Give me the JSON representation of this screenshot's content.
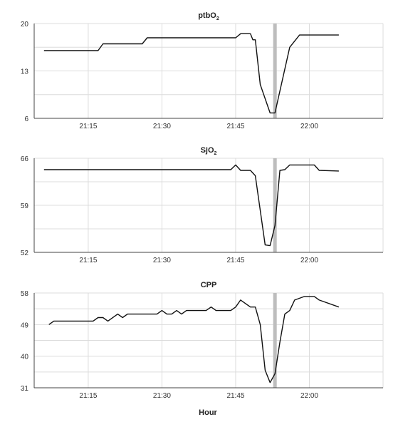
{
  "chart_data": [
    {
      "type": "line",
      "title": "ptbO",
      "title_sub": "2",
      "xlabel": "",
      "ylabel": "",
      "ylim": [
        6,
        20
      ],
      "yticks": [
        "6",
        "13",
        "20"
      ],
      "ytick_values": [
        6,
        13,
        20
      ],
      "xticks": [
        "21:15",
        "21:30",
        "21:45",
        "22:00"
      ],
      "xtick_values": [
        "21:15",
        "21:30",
        "21:45",
        "22:00"
      ],
      "xlim": [
        "21:04",
        "22:15"
      ],
      "grid": true,
      "marker_time": "21:53",
      "series": [
        {
          "x": [
            "21:06",
            "21:17",
            "21:18",
            "21:26",
            "21:27",
            "21:45",
            "21:46",
            "21:48",
            "21:48.5",
            "21:49",
            "21:50",
            "21:52",
            "21:53",
            "21:56",
            "21:58",
            "22:06"
          ],
          "values": [
            16,
            16,
            17,
            17,
            17.9,
            17.9,
            18.5,
            18.5,
            17.6,
            17.6,
            11,
            6.8,
            6.8,
            16.5,
            18.3,
            18.3
          ]
        }
      ]
    },
    {
      "type": "line",
      "title": "SjO",
      "title_sub": "2",
      "xlabel": "",
      "ylabel": "",
      "ylim": [
        52,
        66
      ],
      "yticks": [
        "52",
        "59",
        "66"
      ],
      "ytick_values": [
        52,
        59,
        66
      ],
      "xticks": [
        "21:15",
        "21:30",
        "21:45",
        "22:00"
      ],
      "xtick_values": [
        "21:15",
        "21:30",
        "21:45",
        "22:00"
      ],
      "xlim": [
        "21:04",
        "22:15"
      ],
      "grid": true,
      "marker_time": "21:53",
      "series": [
        {
          "x": [
            "21:06",
            "21:44",
            "21:45",
            "21:46",
            "21:48",
            "21:49",
            "21:51",
            "21:52",
            "21:53",
            "21:54",
            "21:55",
            "21:56",
            "22:01",
            "22:02",
            "22:06"
          ],
          "values": [
            64.3,
            64.3,
            65,
            64.2,
            64.2,
            63.4,
            53.1,
            53,
            56,
            64.2,
            64.3,
            65,
            65,
            64.2,
            64.1
          ]
        }
      ]
    },
    {
      "type": "line",
      "title": "CPP",
      "title_sub": "",
      "xlabel": "Hour",
      "ylabel": "",
      "ylim": [
        31,
        58
      ],
      "yticks": [
        "31",
        "40",
        "49",
        "58"
      ],
      "ytick_values": [
        31,
        40,
        49,
        58
      ],
      "xticks": [
        "21:15",
        "21:30",
        "21:45",
        "22:00"
      ],
      "xtick_values": [
        "21:15",
        "21:30",
        "21:45",
        "22:00"
      ],
      "xlim": [
        "21:04",
        "22:15"
      ],
      "grid": true,
      "marker_time": "21:53",
      "series": [
        {
          "x": [
            "21:07",
            "21:08",
            "21:16",
            "21:17",
            "21:18",
            "21:19",
            "21:21",
            "21:22",
            "21:23",
            "21:29",
            "21:30",
            "21:31",
            "21:32",
            "21:33",
            "21:34",
            "21:35",
            "21:39",
            "21:40",
            "21:41",
            "21:44",
            "21:45",
            "21:46",
            "21:47",
            "21:48",
            "21:49",
            "21:50",
            "21:51",
            "21:52",
            "21:53",
            "21:54",
            "21:55",
            "21:56",
            "21:57",
            "21:59",
            "22:01",
            "22:02",
            "22:06"
          ],
          "values": [
            49,
            50,
            50,
            51,
            51,
            50,
            52,
            51,
            52,
            52,
            53,
            52,
            52,
            53,
            52,
            53,
            53,
            54,
            53,
            53,
            54,
            56,
            55,
            54,
            54,
            49,
            36,
            32.5,
            35,
            44,
            52,
            53,
            56,
            57,
            57,
            56,
            54
          ]
        }
      ]
    }
  ]
}
